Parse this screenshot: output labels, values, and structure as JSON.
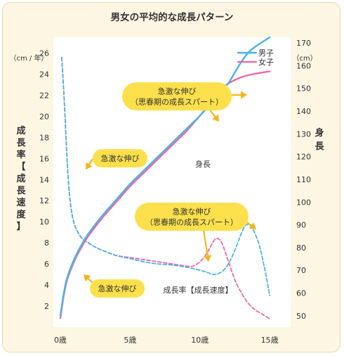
{
  "chart_data": {
    "type": "line",
    "title": "男女の平均的な成長パターン",
    "x_axis": {
      "ticks": [
        "0歳",
        "5歳",
        "10歳",
        "15歳"
      ],
      "tick_values": [
        0,
        5,
        10,
        15
      ],
      "range": [
        -0.5,
        16.5
      ]
    },
    "y_left": {
      "unit": "（cm / 年）",
      "label": "成長率【成長速度】",
      "ticks": [
        2,
        4,
        6,
        8,
        10,
        12,
        14,
        16,
        18,
        20,
        22,
        24,
        26
      ],
      "range": [
        0,
        27.5
      ]
    },
    "y_right": {
      "unit": "（cm）",
      "label": "身長",
      "ticks": [
        50,
        60,
        70,
        80,
        90,
        100,
        110,
        120,
        130,
        140,
        150,
        160,
        170
      ],
      "range": [
        45,
        172.5
      ]
    },
    "legend": {
      "position": "top-right",
      "entries": [
        "男子",
        "女子"
      ]
    },
    "colors": {
      "boys": "#4cb3e0",
      "girls": "#ea6aa7",
      "bubble": "#fbe04c",
      "arrow": "#f2b61b"
    },
    "series": [
      {
        "name": "男子",
        "measure": "身長",
        "axis": "right",
        "style": "solid",
        "x": [
          0,
          0.25,
          0.5,
          1,
          1.5,
          2,
          3,
          4,
          5,
          6,
          7,
          8,
          9,
          10,
          11,
          12,
          12.5,
          13,
          13.5,
          14,
          14.5,
          15
        ],
        "y": [
          50,
          60,
          67,
          75,
          81,
          86,
          94,
          101,
          108,
          114,
          120,
          126,
          132,
          138,
          145,
          152,
          157,
          162,
          166,
          168.5,
          170.5,
          172.5
        ]
      },
      {
        "name": "女子",
        "measure": "身長",
        "axis": "right",
        "style": "solid",
        "x": [
          0,
          0.25,
          0.5,
          1,
          1.5,
          2,
          3,
          4,
          5,
          6,
          7,
          8,
          9,
          10,
          10.5,
          11,
          11.5,
          12,
          13,
          14,
          15
        ],
        "y": [
          49,
          59,
          66,
          74,
          80,
          85,
          93,
          100,
          107,
          113,
          119,
          125,
          131,
          138,
          142,
          146,
          149,
          152,
          155,
          156.5,
          157.5
        ]
      },
      {
        "name": "男子",
        "measure": "成長率",
        "axis": "left",
        "style": "dashed",
        "x": [
          0.1,
          0.3,
          0.5,
          0.7,
          1,
          1.5,
          2,
          2.5,
          3,
          4,
          5,
          6,
          7,
          8,
          9,
          10,
          10.5,
          11,
          11.5,
          12,
          12.5,
          13,
          13.3,
          13.7,
          14.2,
          14.6,
          15
        ],
        "y": [
          25.6,
          21,
          15.5,
          12,
          9.8,
          8.5,
          8,
          7.6,
          7.3,
          6.8,
          6.5,
          6.2,
          6.0,
          5.9,
          5.7,
          5.4,
          5.2,
          5.0,
          5.2,
          5.9,
          7.3,
          9.0,
          9.7,
          9.5,
          8.0,
          5.8,
          3.0
        ]
      },
      {
        "name": "女子",
        "measure": "成長率",
        "axis": "left",
        "style": "dashed",
        "x": [
          0.1,
          0.3,
          0.5,
          0.7,
          1,
          1.5,
          2,
          2.5,
          3,
          4,
          5,
          6,
          7,
          8,
          9,
          9.5,
          10,
          10.5,
          11,
          11.3,
          11.6,
          12,
          12.5,
          13,
          13.5,
          14,
          14.5,
          15
        ],
        "y": [
          25.6,
          21,
          15.5,
          12,
          9.8,
          8.5,
          8,
          7.6,
          7.3,
          6.8,
          6.6,
          6.4,
          6.2,
          6.0,
          5.8,
          5.8,
          6.2,
          7.0,
          8.2,
          8.4,
          7.9,
          6.4,
          4.5,
          3.2,
          2.2,
          1.6,
          1.2,
          0.8
        ]
      }
    ],
    "annotations": {
      "spurt_upper": "急激な伸び\n（思春期の成長スパート）",
      "spurt_middle": "急激な伸び\n（思春期の成長スパート）",
      "infant_upper": "急激な伸び",
      "infant_lower": "急激な伸び",
      "height_label": "身長",
      "rate_label": "成長率【成長速度】"
    }
  }
}
